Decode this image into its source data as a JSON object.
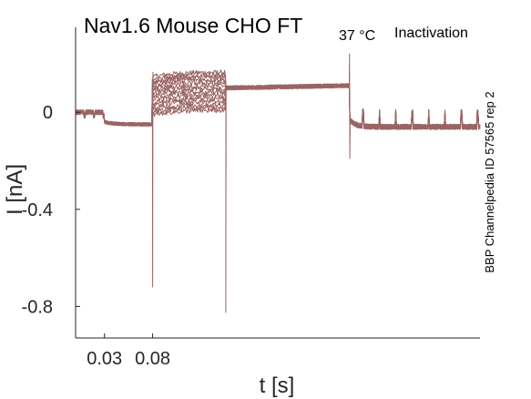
{
  "chart_data": {
    "type": "line",
    "title": {
      "main": "Nav1.6  Mouse  CHO FT",
      "subscript": "37 °C",
      "suffix": "Inactivation"
    },
    "side_label": "BBP Channelpedia ID 57565 rep 2",
    "xlabel": "t [s]",
    "ylabel": "I [nA]",
    "x_ticks": [
      {
        "value": 0.03,
        "label": "0.03"
      },
      {
        "value": 0.08,
        "label": "0.08"
      }
    ],
    "y_ticks": [
      {
        "value": 0,
        "label": "0"
      },
      {
        "value": -0.4,
        "label": "-0.4"
      },
      {
        "value": -0.8,
        "label": "-0.8"
      }
    ],
    "xlim": [
      0.0,
      0.42
    ],
    "ylim": [
      -0.93,
      0.35
    ],
    "grid": false,
    "legend": "none",
    "trace_color": "#9a6464",
    "num_sweeps": 14,
    "protocol": {
      "seg1_end": 0.03,
      "seg2_end": 0.0795,
      "seg3_end": 0.1555,
      "seg4_end": 0.2845,
      "pre_level": 0.0,
      "seg2_level": -0.05,
      "prepulse_levels": [
        0.165,
        0.155,
        0.145,
        0.135,
        0.122,
        0.11,
        0.098,
        0.085,
        0.072,
        0.058,
        0.045,
        0.032,
        0.02,
        0.008
      ],
      "test_level": 0.1,
      "test_level_end": 0.11,
      "post_level": -0.06,
      "peak_1_time": 0.08,
      "peak_1_value": -0.72,
      "peak_2_time": 0.156,
      "peak_2_value": -0.825,
      "spike_3_time": 0.2845,
      "spike_3_top": 0.24,
      "spike_3_bottom": -0.19
    }
  }
}
